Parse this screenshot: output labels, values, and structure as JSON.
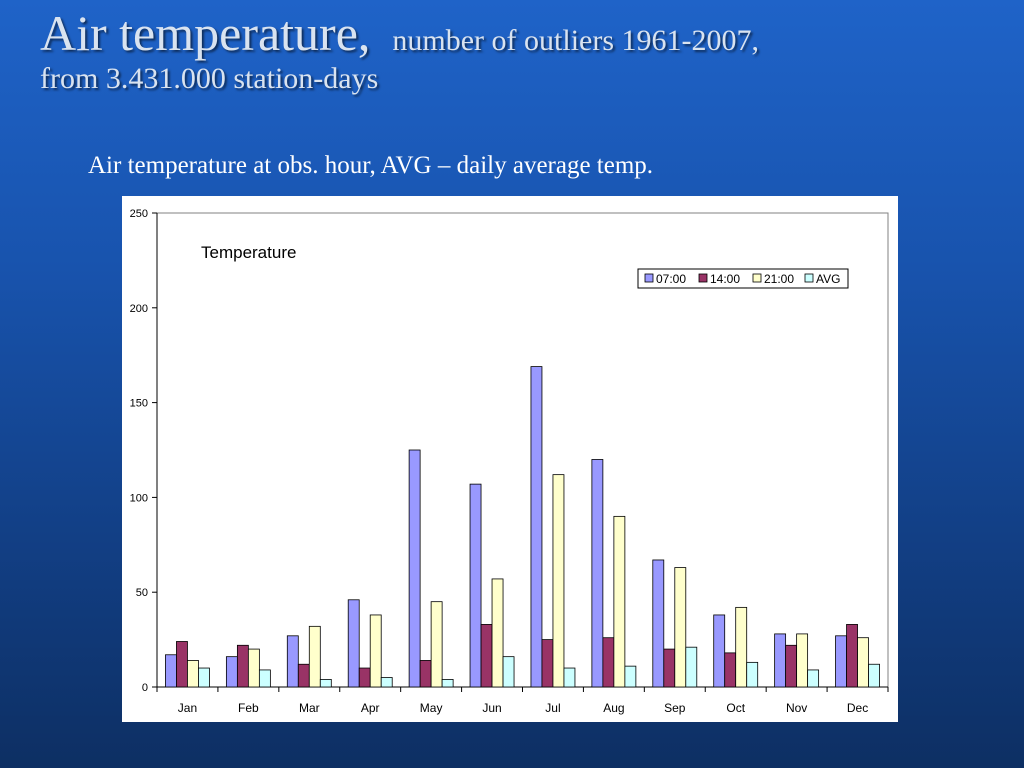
{
  "slide": {
    "title_main": "Air temperature,",
    "title_sub": "number of outliers 1961-2007,",
    "title_line2": "from 3.431.000 station-days",
    "caption": "Air temperature at obs. hour, AVG – daily average temp."
  },
  "colors": {
    "series": [
      "#9999ff",
      "#993366",
      "#ffffcc",
      "#ccffff"
    ]
  },
  "chart_data": {
    "type": "bar",
    "title": "Temperature",
    "xlabel": "",
    "ylabel": "",
    "ylim": [
      0,
      250
    ],
    "yticks": [
      0,
      50,
      100,
      150,
      200,
      250
    ],
    "grid": false,
    "legend": "top-right",
    "categories": [
      "Jan",
      "Feb",
      "Mar",
      "Apr",
      "May",
      "Jun",
      "Jul",
      "Aug",
      "Sep",
      "Oct",
      "Nov",
      "Dec"
    ],
    "series": [
      {
        "name": "07:00",
        "values": [
          17,
          16,
          27,
          46,
          125,
          107,
          169,
          120,
          67,
          38,
          28,
          27
        ]
      },
      {
        "name": "14:00",
        "values": [
          24,
          22,
          12,
          10,
          14,
          33,
          25,
          26,
          20,
          18,
          22,
          33
        ]
      },
      {
        "name": "21:00",
        "values": [
          14,
          20,
          32,
          38,
          45,
          57,
          112,
          90,
          63,
          42,
          28,
          26
        ]
      },
      {
        "name": "AVG",
        "values": [
          10,
          9,
          4,
          5,
          4,
          16,
          10,
          11,
          21,
          13,
          9,
          12
        ]
      }
    ]
  }
}
